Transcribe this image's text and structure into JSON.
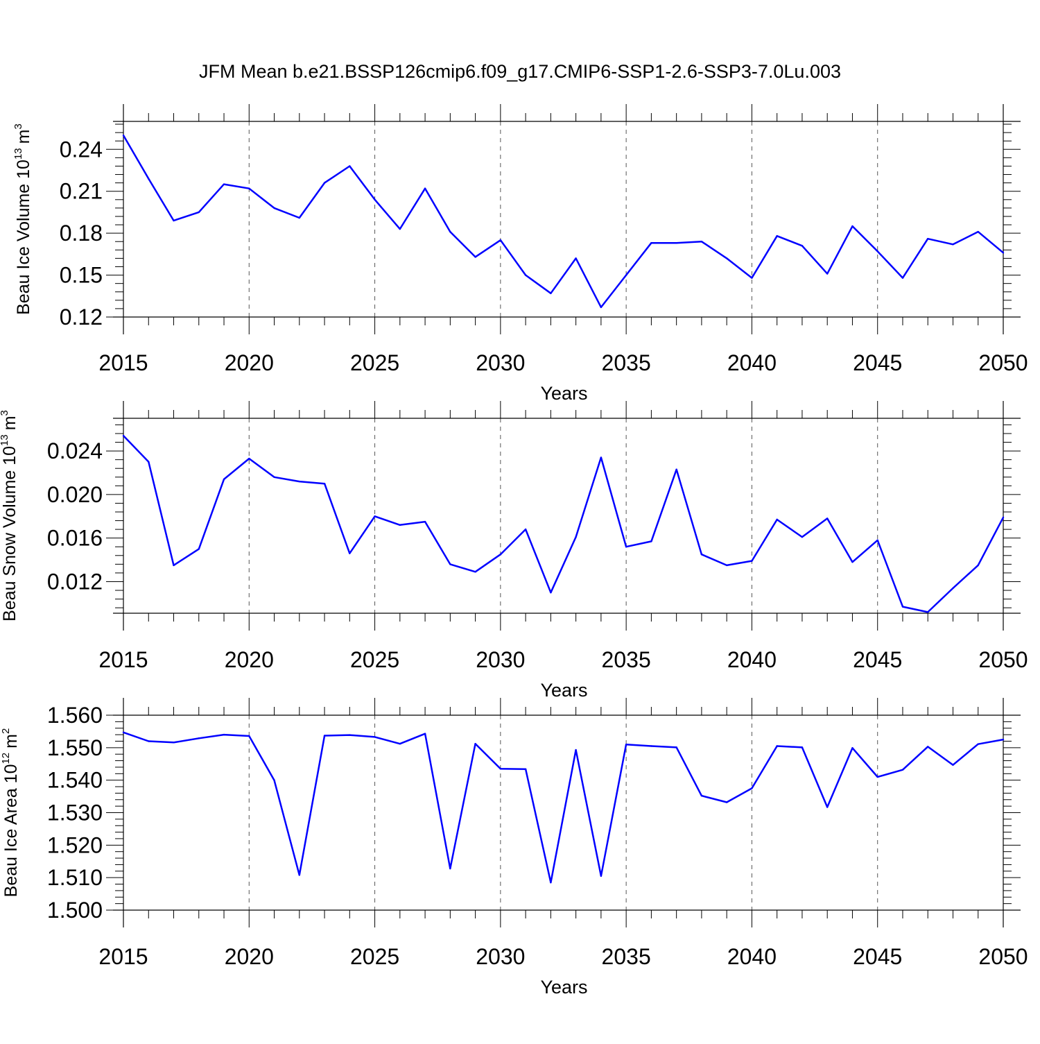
{
  "title": "JFM Mean b.e21.BSSP126cmip6.f09_g17.CMIP6-SSP1-2.6-SSP3-7.0Lu.003",
  "colors": {
    "line": "#0000ff",
    "axis": "#000000",
    "grid": "#555555"
  },
  "chart_data": [
    {
      "type": "line",
      "xlabel": "Years",
      "ylabel": {
        "main": "Beau Ice Volume 10",
        "exponent": "13",
        "unit": "m",
        "unit_exponent": "3"
      },
      "xlim": [
        2015,
        2050
      ],
      "ylim": [
        0.12,
        0.26
      ],
      "x_ticks": [
        "2015",
        "2020",
        "2025",
        "2030",
        "2035",
        "2040",
        "2045",
        "2050"
      ],
      "y_ticks": [
        "0.12",
        "0.15",
        "0.18",
        "0.21",
        "0.24"
      ],
      "grid": "vertical dashed at major x ticks",
      "x": [
        2015,
        2016,
        2017,
        2018,
        2019,
        2020,
        2021,
        2022,
        2023,
        2024,
        2025,
        2026,
        2027,
        2028,
        2029,
        2030,
        2031,
        2032,
        2033,
        2034,
        2035,
        2036,
        2037,
        2038,
        2039,
        2040,
        2041,
        2042,
        2043,
        2044,
        2045,
        2046,
        2047,
        2048,
        2049,
        2050
      ],
      "values": [
        0.25,
        0.219,
        0.189,
        0.195,
        0.215,
        0.212,
        0.198,
        0.191,
        0.216,
        0.228,
        0.204,
        0.183,
        0.212,
        0.181,
        0.163,
        0.175,
        0.15,
        0.137,
        0.162,
        0.127,
        0.15,
        0.173,
        0.173,
        0.174,
        0.162,
        0.148,
        0.178,
        0.171,
        0.151,
        0.185,
        0.167,
        0.148,
        0.176,
        0.172,
        0.181,
        0.166
      ]
    },
    {
      "type": "line",
      "xlabel": "Years",
      "ylabel": {
        "main": "Beau Snow Volume 10",
        "exponent": "13",
        "unit": "m",
        "unit_exponent": "3"
      },
      "xlim": [
        2015,
        2050
      ],
      "ylim": [
        0.0091,
        0.027
      ],
      "x_ticks": [
        "2015",
        "2020",
        "2025",
        "2030",
        "2035",
        "2040",
        "2045",
        "2050"
      ],
      "y_ticks": [
        "0.012",
        "0.016",
        "0.020",
        "0.024"
      ],
      "grid": "vertical dashed at major x ticks",
      "x": [
        2015,
        2016,
        2017,
        2018,
        2019,
        2020,
        2021,
        2022,
        2023,
        2024,
        2025,
        2026,
        2027,
        2028,
        2029,
        2030,
        2031,
        2032,
        2033,
        2034,
        2035,
        2036,
        2037,
        2038,
        2039,
        2040,
        2041,
        2042,
        2043,
        2044,
        2045,
        2046,
        2047,
        2048,
        2049,
        2050
      ],
      "values": [
        0.0254,
        0.023,
        0.0135,
        0.015,
        0.0214,
        0.0233,
        0.0216,
        0.0212,
        0.021,
        0.0146,
        0.018,
        0.0172,
        0.0175,
        0.0136,
        0.0129,
        0.0145,
        0.0168,
        0.011,
        0.0161,
        0.0234,
        0.0152,
        0.0157,
        0.0223,
        0.0145,
        0.0135,
        0.0139,
        0.0177,
        0.0161,
        0.0178,
        0.0138,
        0.0158,
        0.0097,
        0.0092,
        0.0114,
        0.0135,
        0.0179
      ]
    },
    {
      "type": "line",
      "xlabel": "Years",
      "ylabel": {
        "main": "Beau Ice Area 10",
        "exponent": "12",
        "unit": "m",
        "unit_exponent": "2"
      },
      "xlim": [
        2015,
        2050
      ],
      "ylim": [
        1.5,
        1.56
      ],
      "x_ticks": [
        "2015",
        "2020",
        "2025",
        "2030",
        "2035",
        "2040",
        "2045",
        "2050"
      ],
      "y_ticks": [
        "1.500",
        "1.510",
        "1.520",
        "1.530",
        "1.540",
        "1.550",
        "1.560"
      ],
      "grid": "vertical dashed at major x ticks",
      "x": [
        2015,
        2016,
        2017,
        2018,
        2019,
        2020,
        2021,
        2022,
        2023,
        2024,
        2025,
        2026,
        2027,
        2028,
        2029,
        2030,
        2031,
        2032,
        2033,
        2034,
        2035,
        2036,
        2037,
        2038,
        2039,
        2040,
        2041,
        2042,
        2043,
        2044,
        2045,
        2046,
        2047,
        2048,
        2049,
        2050
      ],
      "values": [
        1.5547,
        1.552,
        1.5516,
        1.5529,
        1.554,
        1.5536,
        1.54,
        1.5108,
        1.5537,
        1.5539,
        1.5533,
        1.5512,
        1.5543,
        1.5128,
        1.5512,
        1.5435,
        1.5434,
        1.5085,
        1.5493,
        1.5105,
        1.551,
        1.5505,
        1.5501,
        1.5352,
        1.5332,
        1.5375,
        1.5505,
        1.5501,
        1.5317,
        1.5499,
        1.541,
        1.5432,
        1.5503,
        1.5447,
        1.5511,
        1.5525
      ]
    }
  ]
}
